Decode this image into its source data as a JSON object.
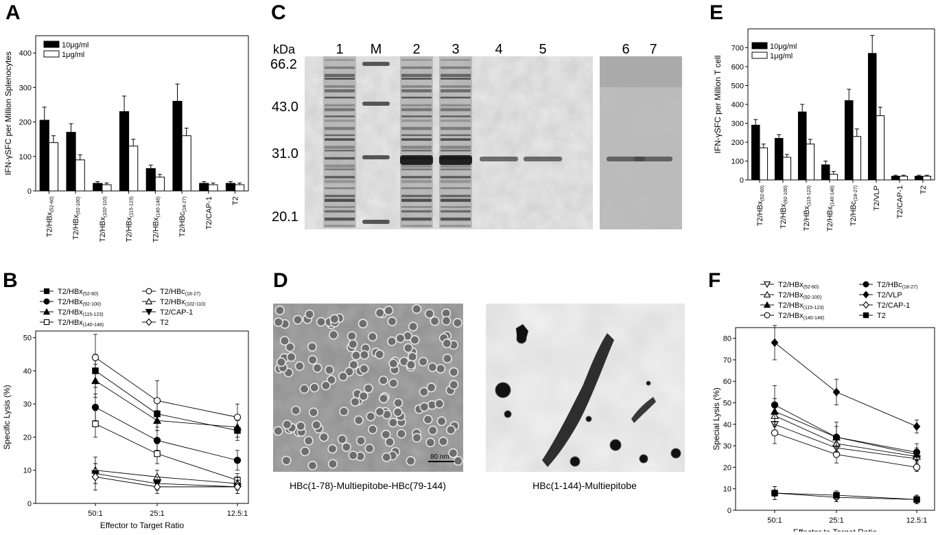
{
  "panels": {
    "A": "A",
    "B": "B",
    "C": "C",
    "D": "D",
    "E": "E",
    "F": "F"
  },
  "chart_data": [
    {
      "panel": "A",
      "type": "bar",
      "ylabel": "IFN-γSFC per Million Splenocytes",
      "ylim": [
        0,
        450
      ],
      "yticks": [
        0,
        100,
        200,
        300,
        400
      ],
      "categories": [
        {
          "base": "T2/HBx",
          "sub": "(52-60)"
        },
        {
          "base": "T2/HBx",
          "sub": "(92-100)"
        },
        {
          "base": "T2/HBx",
          "sub": "(102-110)"
        },
        {
          "base": "T2/HBx",
          "sub": "(115-123)"
        },
        {
          "base": "T2/HBx",
          "sub": "(140-148)"
        },
        {
          "base": "T2/HBc",
          "sub": "(18-27)"
        },
        {
          "base": "T2/CAP-1",
          "sub": ""
        },
        {
          "base": "T2",
          "sub": ""
        }
      ],
      "series": [
        {
          "name": "10μg/ml",
          "color": "#000000",
          "values": [
            205,
            170,
            22,
            230,
            65,
            260,
            22,
            22
          ],
          "errors": [
            38,
            25,
            5,
            45,
            10,
            50,
            5,
            5
          ]
        },
        {
          "name": "1μg/ml",
          "color": "#ffffff",
          "values": [
            140,
            90,
            18,
            130,
            40,
            160,
            18,
            18
          ],
          "errors": [
            20,
            15,
            5,
            20,
            8,
            22,
            5,
            5
          ]
        }
      ],
      "legend": "top-left"
    },
    {
      "panel": "B",
      "type": "line",
      "xlabel": "Effector to Target Ratio",
      "ylabel": "Specific Lysis (%)",
      "x": [
        "50:1",
        "25:1",
        "12.5:1"
      ],
      "ylim": [
        0,
        52
      ],
      "yticks": [
        0,
        10,
        20,
        30,
        40,
        50
      ],
      "series": [
        {
          "base": "T2/HBx",
          "sub": "(52-60)",
          "marker": "filled-square",
          "values": [
            40,
            27,
            22
          ],
          "errors": [
            5,
            4,
            3
          ]
        },
        {
          "base": "T2/HBx",
          "sub": "(92-100)",
          "marker": "filled-circle",
          "values": [
            29,
            19,
            13
          ],
          "errors": [
            4,
            3,
            3
          ]
        },
        {
          "base": "T2/HBx",
          "sub": "(115-123)",
          "marker": "filled-triangle-up",
          "values": [
            37,
            25,
            23
          ],
          "errors": [
            5,
            3,
            3
          ]
        },
        {
          "base": "T2/HBx",
          "sub": "(140-148)",
          "marker": "open-square",
          "values": [
            24,
            15,
            7
          ],
          "errors": [
            4,
            3,
            2
          ]
        },
        {
          "base": "T2/HBc",
          "sub": "(18-27)",
          "marker": "open-circle",
          "values": [
            44,
            31,
            26
          ],
          "errors": [
            7,
            6,
            4
          ]
        },
        {
          "base": "T2/HBx",
          "sub": "(102-110)",
          "marker": "open-triangle-up",
          "values": [
            10,
            8,
            6
          ],
          "errors": [
            4,
            2,
            2
          ]
        },
        {
          "base": "T2/CAP-1",
          "sub": "",
          "marker": "filled-triangle-down",
          "values": [
            9,
            6,
            5
          ],
          "errors": [
            3,
            2,
            2
          ]
        },
        {
          "base": "T2",
          "sub": "",
          "marker": "open-diamond",
          "values": [
            8,
            5,
            5
          ],
          "errors": [
            4,
            2,
            2
          ]
        }
      ],
      "legend": "top"
    },
    {
      "panel": "E",
      "type": "bar",
      "ylabel": "IFN-γSFC per Million T cell",
      "ylim": [
        0,
        800
      ],
      "yticks": [
        0,
        100,
        200,
        300,
        400,
        500,
        600,
        700
      ],
      "categories": [
        {
          "base": "T2/HBx",
          "sub": "(52-60)"
        },
        {
          "base": "T2/HBx",
          "sub": "(92-100)"
        },
        {
          "base": "T2/HBx",
          "sub": "(115-123)"
        },
        {
          "base": "T2/HBx",
          "sub": "(140-148)"
        },
        {
          "base": "T2/HBc",
          "sub": "(18-27)"
        },
        {
          "base": "T2/VLP",
          "sub": ""
        },
        {
          "base": "T2/CAP-1",
          "sub": ""
        },
        {
          "base": "T2",
          "sub": ""
        }
      ],
      "series": [
        {
          "name": "10μg/ml",
          "color": "#000000",
          "values": [
            290,
            220,
            360,
            80,
            420,
            670,
            20,
            20
          ],
          "errors": [
            30,
            20,
            40,
            20,
            60,
            95,
            5,
            5
          ]
        },
        {
          "name": "1μg/ml",
          "color": "#ffffff",
          "values": [
            170,
            120,
            190,
            30,
            230,
            340,
            20,
            20
          ],
          "errors": [
            20,
            15,
            25,
            15,
            40,
            45,
            5,
            5
          ]
        }
      ],
      "legend": "top-left"
    },
    {
      "panel": "F",
      "type": "line",
      "xlabel": "Effector to Target Ratio",
      "ylabel": "Special Lysis (%)",
      "x": [
        "50:1",
        "25:1",
        "12.5:1"
      ],
      "ylim": [
        0,
        85
      ],
      "yticks": [
        0,
        10,
        20,
        30,
        40,
        50,
        60,
        70,
        80
      ],
      "series": [
        {
          "base": "T2/HBx",
          "sub": "(52-60)",
          "marker": "open-triangle-down",
          "values": [
            40,
            29,
            24
          ],
          "errors": [
            5,
            4,
            3
          ]
        },
        {
          "base": "T2/HBx",
          "sub": "(92-100)",
          "marker": "open-triangle-up",
          "values": [
            44,
            31,
            25
          ],
          "errors": [
            5,
            4,
            3
          ]
        },
        {
          "base": "T2/HBx",
          "sub": "(115-123)",
          "marker": "filled-triangle-up",
          "values": [
            46,
            34,
            26
          ],
          "errors": [
            6,
            5,
            3
          ]
        },
        {
          "base": "T2/HBx",
          "sub": "(140-148)",
          "marker": "open-circle",
          "values": [
            36,
            26,
            20
          ],
          "errors": [
            5,
            4,
            2
          ]
        },
        {
          "base": "T2/HBc",
          "sub": "(18-27)",
          "marker": "filled-circle",
          "values": [
            49,
            34,
            27
          ],
          "errors": [
            9,
            7,
            4
          ]
        },
        {
          "base": "T2/VLP",
          "sub": "",
          "marker": "filled-diamond",
          "values": [
            78,
            55,
            39
          ],
          "errors": [
            8,
            6,
            3
          ]
        },
        {
          "base": "T2/CAP-1",
          "sub": "",
          "marker": "open-diamond",
          "values": [
            8,
            6,
            5
          ],
          "errors": [
            3,
            2,
            2
          ]
        },
        {
          "base": "T2",
          "sub": "",
          "marker": "filled-square",
          "values": [
            8,
            7,
            5
          ],
          "errors": [
            3,
            2,
            2
          ]
        }
      ],
      "legend": "top"
    }
  ],
  "gel": {
    "unit": "kDa",
    "markers": [
      "66.2",
      "43.0",
      "31.0",
      "20.1"
    ],
    "lanes": [
      "1",
      "M",
      "2",
      "3",
      "4",
      "5",
      "6",
      "7"
    ]
  },
  "micrographs": {
    "left_caption": "HBc(1-78)-Multiepitobe-HBc(79-144)",
    "right_caption": "HBc(1-144)-Multiepitobe",
    "scale_bar": "80 nm"
  }
}
